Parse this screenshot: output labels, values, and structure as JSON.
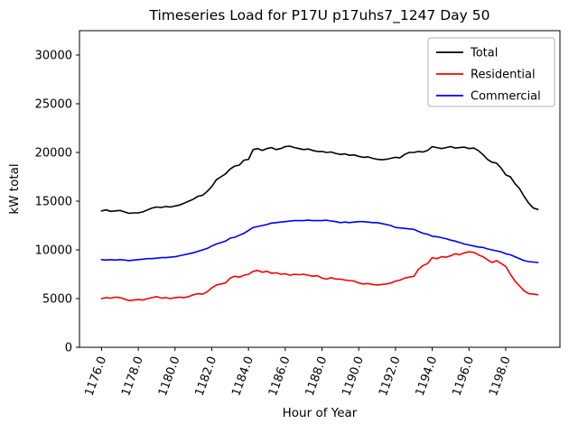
{
  "chart_data": {
    "type": "line",
    "title": "Timeseries Load for P17U p17uhs7_1247  Day 50",
    "xlabel": "Hour of Year",
    "ylabel": "kW total",
    "xlim": [
      1174.8,
      1200.95
    ],
    "ylim": [
      0,
      32500
    ],
    "grid": false,
    "legend_position": "upper right",
    "xticks": [
      1176,
      1178,
      1180,
      1182,
      1184,
      1186,
      1188,
      1190,
      1192,
      1194,
      1196,
      1198
    ],
    "xtick_labels": [
      "1176.0",
      "1178.0",
      "1180.0",
      "1182.0",
      "1184.0",
      "1186.0",
      "1188.0",
      "1190.0",
      "1192.0",
      "1194.0",
      "1196.0",
      "1198.0"
    ],
    "yticks": [
      0,
      5000,
      10000,
      15000,
      20000,
      25000,
      30000
    ],
    "ytick_labels": [
      "0",
      "5000",
      "10000",
      "15000",
      "20000",
      "25000",
      "30000"
    ],
    "x": [
      1176.0,
      1176.25,
      1176.5,
      1176.75,
      1177.0,
      1177.25,
      1177.5,
      1177.75,
      1178.0,
      1178.25,
      1178.5,
      1178.75,
      1179.0,
      1179.25,
      1179.5,
      1179.75,
      1180.0,
      1180.25,
      1180.5,
      1180.75,
      1181.0,
      1181.25,
      1181.5,
      1181.75,
      1182.0,
      1182.25,
      1182.5,
      1182.75,
      1183.0,
      1183.25,
      1183.5,
      1183.75,
      1184.0,
      1184.25,
      1184.5,
      1184.75,
      1185.0,
      1185.25,
      1185.5,
      1185.75,
      1186.0,
      1186.25,
      1186.5,
      1186.75,
      1187.0,
      1187.25,
      1187.5,
      1187.75,
      1188.0,
      1188.25,
      1188.5,
      1188.75,
      1189.0,
      1189.25,
      1189.5,
      1189.75,
      1190.0,
      1190.25,
      1190.5,
      1190.75,
      1191.0,
      1191.25,
      1191.5,
      1191.75,
      1192.0,
      1192.25,
      1192.5,
      1192.75,
      1193.0,
      1193.25,
      1193.5,
      1193.75,
      1194.0,
      1194.25,
      1194.5,
      1194.75,
      1195.0,
      1195.25,
      1195.5,
      1195.75,
      1196.0,
      1196.25,
      1196.5,
      1196.75,
      1197.0,
      1197.25,
      1197.5,
      1197.75,
      1198.0,
      1198.25,
      1198.5,
      1198.75,
      1199.0,
      1199.25,
      1199.5,
      1199.75
    ],
    "series": [
      {
        "name": "Total",
        "color": "#000000",
        "values": [
          14000,
          14100,
          13950,
          14000,
          14050,
          13900,
          13750,
          13800,
          13800,
          13900,
          14100,
          14300,
          14400,
          14350,
          14450,
          14400,
          14500,
          14600,
          14800,
          15000,
          15200,
          15500,
          15600,
          16000,
          16500,
          17200,
          17500,
          17800,
          18300,
          18600,
          18700,
          19200,
          19300,
          20300,
          20400,
          20200,
          20400,
          20500,
          20300,
          20400,
          20600,
          20650,
          20500,
          20400,
          20300,
          20350,
          20200,
          20100,
          20100,
          20000,
          20050,
          19900,
          19800,
          19850,
          19700,
          19750,
          19600,
          19500,
          19550,
          19400,
          19300,
          19250,
          19300,
          19400,
          19500,
          19450,
          19800,
          20000,
          20000,
          20100,
          20050,
          20200,
          20600,
          20500,
          20400,
          20500,
          20600,
          20450,
          20500,
          20550,
          20400,
          20450,
          20200,
          19800,
          19300,
          19000,
          18900,
          18400,
          17700,
          17500,
          16800,
          16300,
          15500,
          14800,
          14300,
          14150
        ]
      },
      {
        "name": "Residential",
        "color": "#ff0000",
        "values": [
          5000,
          5100,
          5050,
          5150,
          5100,
          4950,
          4800,
          4850,
          4900,
          4850,
          5000,
          5100,
          5200,
          5050,
          5100,
          5000,
          5100,
          5150,
          5100,
          5200,
          5400,
          5500,
          5450,
          5700,
          6100,
          6400,
          6500,
          6600,
          7100,
          7300,
          7200,
          7400,
          7500,
          7800,
          7900,
          7700,
          7800,
          7600,
          7650,
          7500,
          7550,
          7400,
          7500,
          7450,
          7500,
          7400,
          7300,
          7350,
          7100,
          7000,
          7150,
          7000,
          7000,
          6900,
          6850,
          6800,
          6600,
          6500,
          6550,
          6450,
          6400,
          6450,
          6500,
          6600,
          6800,
          6900,
          7100,
          7200,
          7300,
          8000,
          8400,
          8600,
          9200,
          9100,
          9300,
          9250,
          9400,
          9600,
          9500,
          9700,
          9800,
          9750,
          9500,
          9300,
          9000,
          8700,
          8900,
          8600,
          8300,
          7500,
          6800,
          6300,
          5800,
          5500,
          5450,
          5400
        ]
      },
      {
        "name": "Commercial",
        "color": "#0000ff",
        "values": [
          9000,
          8950,
          9000,
          8950,
          9000,
          8950,
          8900,
          8950,
          9000,
          9050,
          9100,
          9100,
          9150,
          9200,
          9200,
          9250,
          9300,
          9400,
          9500,
          9600,
          9700,
          9850,
          10000,
          10150,
          10400,
          10600,
          10750,
          10900,
          11200,
          11300,
          11500,
          11700,
          12000,
          12300,
          12400,
          12500,
          12600,
          12750,
          12800,
          12850,
          12900,
          12950,
          13000,
          13000,
          13000,
          13050,
          13000,
          13000,
          13000,
          13050,
          12950,
          12900,
          12800,
          12850,
          12800,
          12850,
          12900,
          12900,
          12850,
          12800,
          12800,
          12700,
          12600,
          12500,
          12300,
          12250,
          12200,
          12150,
          12100,
          11900,
          11700,
          11600,
          11400,
          11350,
          11250,
          11150,
          11000,
          10900,
          10750,
          10600,
          10500,
          10400,
          10300,
          10250,
          10100,
          10000,
          9900,
          9800,
          9600,
          9500,
          9300,
          9100,
          8900,
          8800,
          8750,
          8700
        ]
      }
    ],
    "legend": {
      "entries": [
        {
          "label": "Total",
          "color": "#000000"
        },
        {
          "label": "Residential",
          "color": "#ff0000"
        },
        {
          "label": "Commercial",
          "color": "#0000ff"
        }
      ]
    }
  }
}
